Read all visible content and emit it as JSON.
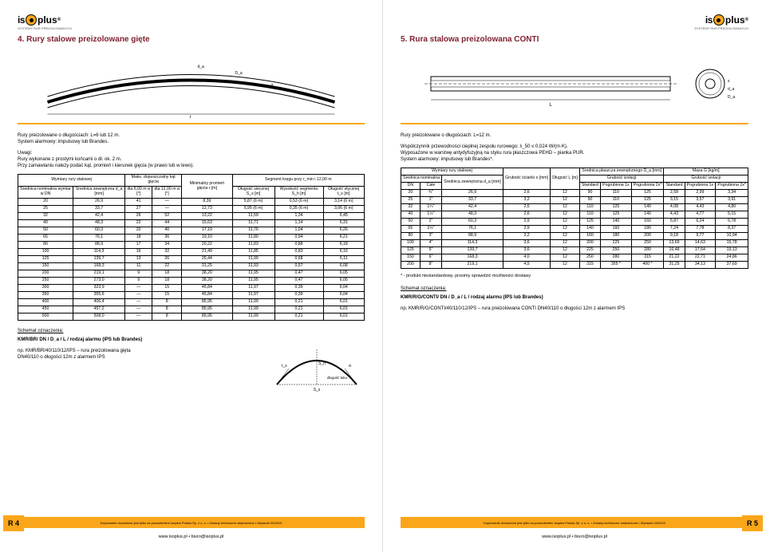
{
  "brand": {
    "name_is": "is",
    "name_plus": "plus",
    "subtitle": "SYSTEMY RUR PREIZOLOWANYCH",
    "reg": "®"
  },
  "left": {
    "title": "4. Rury stalowe preizolowane gięte",
    "intro1": "Rury preizolowane o długościach: L=6 lub 12 m.\nSystem alarmowy: impulsowy lub Brandes.",
    "intro2": "Uwagi:\nRury wykonane z prostymi końcami o dł. ok. 2 m.\nPrzy zamawianiu należy podać kąt, promień i kierunek gięcia (w prawo lub w lewo).",
    "table": {
      "h_group1": "Wymiary rury stalowej",
      "h_group2": "Maks. dopuszczalny kąt gięcia",
      "h_minr": "Minimalny promień gięcia r [m]",
      "h_seg": "Segment kręgu przy r_min i 12,00 m",
      "h_dn": "Średnica nominalna wymiar w DN",
      "h_da": "Średnica zewnętrzna d_a [mm]",
      "h_a6": "dla 6,00 m α [°]",
      "h_a12": "dla 12,00 m α [°]",
      "h_ss": "Długość siecznej S_s [m]",
      "h_sh": "Wysokość segmentu S_h [m]",
      "h_ts": "Długość stycznej t_s [m]",
      "rows": [
        [
          "20",
          "26,9",
          "41",
          "—",
          "8,39",
          "5,87 (6 m)",
          "0,53 (6 m)",
          "3,14 (6 m)"
        ],
        [
          "25",
          "33,7",
          "27",
          "—",
          "12,73",
          "5,95 (6 m)",
          "0,35 (6 m)",
          "3,06 (6 m)"
        ],
        [
          "32",
          "42,4",
          "26",
          "52",
          "13,22",
          "11,59",
          "1,34",
          "6,45"
        ],
        [
          "40",
          "48,3",
          "22",
          "44",
          "15,63",
          "11,71",
          "1,14",
          "6,31"
        ],
        [
          "50",
          "60,3",
          "20",
          "40",
          "17,19",
          "11,76",
          "1,04",
          "6,26"
        ],
        [
          "65",
          "76,1",
          "18",
          "36",
          "19,10",
          "11,80",
          "0,94",
          "6,21"
        ],
        [
          "80",
          "88,9",
          "17",
          "34",
          "20,22",
          "11,83",
          "0,88",
          "6,18"
        ],
        [
          "100",
          "114,3",
          "16",
          "32",
          "21,49",
          "11,85",
          "0,83",
          "6,16"
        ],
        [
          "125",
          "139,7",
          "13",
          "26",
          "26,44",
          "11,90",
          "0,68",
          "6,11"
        ],
        [
          "150",
          "168,3",
          "11",
          "22",
          "31,25",
          "11,93",
          "0,57",
          "6,08"
        ],
        [
          "200",
          "219,1",
          "9",
          "18",
          "38,20",
          "11,95",
          "0,47",
          "6,05"
        ],
        [
          "250",
          "273,0",
          "9",
          "18",
          "38,20",
          "11,95",
          "0,47",
          "6,05"
        ],
        [
          "300",
          "323,9",
          "—",
          "15",
          "45,84",
          "11,97",
          "0,39",
          "6,04"
        ],
        [
          "350",
          "355,6",
          "—",
          "15",
          "45,84",
          "11,97",
          "0,39",
          "6,04"
        ],
        [
          "400",
          "406,4",
          "—",
          "8",
          "85,95",
          "11,99",
          "0,21",
          "6,01"
        ],
        [
          "450",
          "457,2",
          "—",
          "8",
          "85,95",
          "11,99",
          "0,21",
          "6,01"
        ],
        [
          "500",
          "508,0",
          "—",
          "8",
          "85,95",
          "11,99",
          "0,21",
          "6,01"
        ]
      ]
    },
    "schemat": "Schemat oznaczenia:",
    "schemat_line": "KMR/BR/ DN / D_a / L / rodzaj alarmu (IPS lub Brandes)",
    "example": "np. KMR/BR/40/110/12/IPS – rura preizolowana gięta\nDN40/110 o długości 12m z alarmem IPS",
    "pg": "R 4"
  },
  "right": {
    "title": "5. Rura stalowa preizolowana CONTI",
    "intro1": "Rury preizolowane o długościach: L=12 m.",
    "intro2": "Współczynnik przewodności cieplnej zespołu rurowego: λ_50 ≤ 0,024 W/(m·K).\nWyposażone w warstwę antydyfuzyjną na styku rura płaszczowa PEHD – pianka PUR.\nSystem alarmowy: impulsowy lub Brandes*.",
    "table": {
      "h_group1": "Wymiary rury stalowej",
      "h_sn": "Średnica nominalna",
      "h_dn": "DN",
      "h_cale": "Cale",
      "h_da": "Średnica zewnętrzna d_a [mm]",
      "h_s": "Grubość ścianki s [mm]",
      "h_L": "Długość L [m]",
      "h_Da_group": "Średnica płaszcza zewnętrznego D_a [mm]",
      "h_iz": "Grubość izolacji",
      "h_std": "Standard",
      "h_p1": "Pogrubiona 1x",
      "h_p2": "Pogrubiona 2x*",
      "h_mass": "Masa G [kg/m]",
      "rows": [
        [
          "20",
          "¾″",
          "26,9",
          "2,6",
          "12",
          "90",
          "110",
          "125",
          "2,58",
          "2,99",
          "3,34"
        ],
        [
          "25",
          "1″",
          "33,7",
          "3,2",
          "12",
          "90",
          "110",
          "125",
          "3,15",
          "3,57",
          "3,91"
        ],
        [
          "32",
          "1¼″",
          "42,4",
          "2,6",
          "12",
          "110",
          "125",
          "140",
          "4,08",
          "4,43",
          "4,80"
        ],
        [
          "40",
          "1½″",
          "48,3",
          "2,6",
          "12",
          "110",
          "125",
          "140",
          "4,43",
          "4,77",
          "5,15"
        ],
        [
          "50",
          "2″",
          "60,3",
          "2,9",
          "12",
          "125",
          "140",
          "160",
          "5,87",
          "6,24",
          "6,78"
        ],
        [
          "65",
          "2½″",
          "76,1",
          "2,9",
          "12",
          "140",
          "160",
          "180",
          "7,24",
          "7,78",
          "8,37"
        ],
        [
          "80",
          "3″",
          "88,9",
          "3,2",
          "12",
          "160",
          "180",
          "200",
          "9,18",
          "9,77",
          "10,94"
        ],
        [
          "100",
          "4″",
          "114,3",
          "3,6",
          "12",
          "200",
          "225",
          "250",
          "13,69",
          "14,63",
          "15,78"
        ],
        [
          "125",
          "5″",
          "139,7",
          "3,6",
          "12",
          "225",
          "250",
          "280",
          "16,48",
          "17,64",
          "19,13"
        ],
        [
          "150",
          "6″",
          "168,3",
          "4,0",
          "12",
          "250",
          "280",
          "315",
          "21,22",
          "22,71",
          "24,86"
        ],
        [
          "200",
          "8″",
          "219,1",
          "4,5",
          "12",
          "315",
          "355 *",
          "400 *",
          "31,25",
          "34,13",
          "37,69"
        ]
      ]
    },
    "note_star": "* - produkt niestandardowy, prosimy sprawdzić możliwości dostawy",
    "schemat": "Schemat oznaczenia:",
    "schemat_line": "KMR/R/G/CONTI/ DN / D_a / L / rodzaj alarmu (IPS lub Brandes)",
    "example": "np. KMR/R/G/CONTI/40/110/12/IPS – rura preizolowana CONTI DN40/110 o długości 12m z alarmem IPS",
    "pg": "R 5"
  },
  "footer": {
    "text": "Kopiowanie dozwolone jest tylko za pozwoleniem Isoplus Polska Sp. z o. o. • Zmiany techniczne zastrzeżone • Wydanie 04/2010",
    "www": "www.isoplus.pl • biuro@isoplus.pl"
  },
  "colors": {
    "accent": "#7e2130",
    "orange": "#faa61a",
    "line": "#000000"
  }
}
